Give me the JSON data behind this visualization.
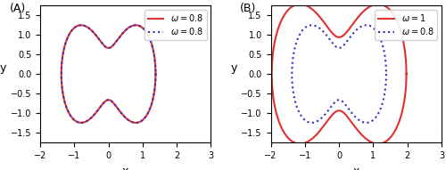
{
  "panel_A": {
    "label": "(A)",
    "curves": [
      {
        "omega": 0.8,
        "legend": "$\\omega = 0.8$",
        "style": "solid",
        "color": "#e03030",
        "lw": 1.5,
        "A1": 1.2,
        "A3": 0.18,
        "scale": 1.0
      },
      {
        "omega": 0.8,
        "legend": "$\\omega = 0.8$",
        "style": "dotted",
        "color": "#3030c0",
        "lw": 1.5,
        "A1": 1.2,
        "A3": 0.18,
        "scale": 1.0
      }
    ],
    "xlim": [
      -2,
      3
    ],
    "ylim": [
      -1.75,
      1.75
    ],
    "yticks": [
      -1.5,
      -1.0,
      -0.5,
      0.0,
      0.5,
      1.0,
      1.5
    ],
    "xticks": [
      -2,
      -1,
      0,
      1,
      2,
      3
    ],
    "xlabel": "x",
    "ylabel": "y"
  },
  "panel_B": {
    "label": "(B)",
    "curves": [
      {
        "omega": 1.0,
        "legend": "$\\omega = 1$",
        "style": "solid",
        "color": "#e03030",
        "lw": 1.5,
        "A1": 1.45,
        "A3": 0.22,
        "scale": 1.18
      },
      {
        "omega": 0.8,
        "legend": "$\\omega = 0.8$",
        "style": "dotted",
        "color": "#3030c0",
        "lw": 1.5,
        "A1": 1.2,
        "A3": 0.18,
        "scale": 1.0
      }
    ],
    "xlim": [
      -2,
      3
    ],
    "ylim": [
      -1.75,
      1.75
    ],
    "yticks": [
      -1.5,
      -1.0,
      -0.5,
      0.0,
      0.5,
      1.0,
      1.5
    ],
    "xticks": [
      -2,
      -1,
      0,
      1,
      2,
      3
    ],
    "xlabel": "x",
    "ylabel": "y"
  },
  "fig_width": 5.0,
  "fig_height": 1.91,
  "dpi": 100
}
